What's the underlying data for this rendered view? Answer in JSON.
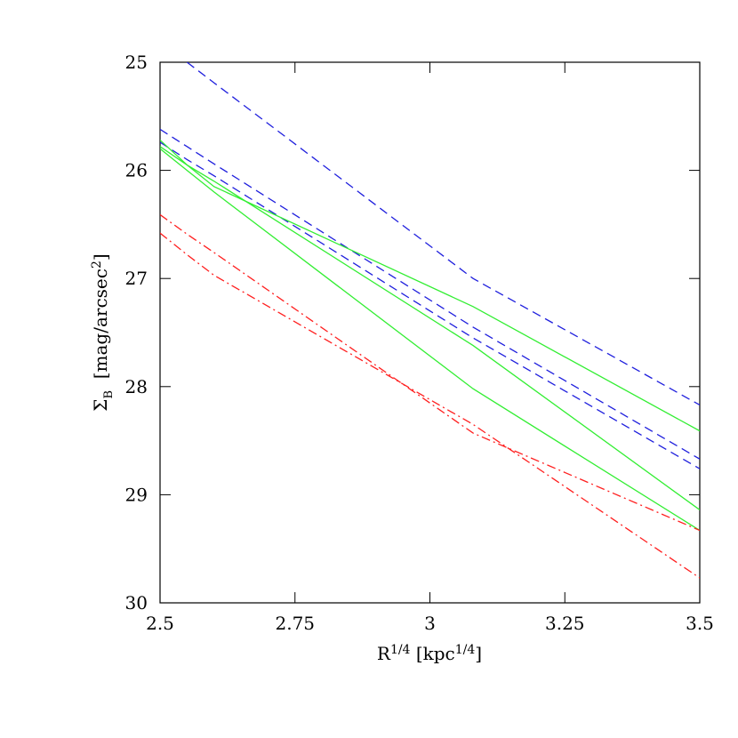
{
  "chart_data": {
    "type": "line",
    "x_label": [
      "R",
      "1/4",
      " [kpc",
      "1/4",
      "]"
    ],
    "y_label": [
      "Σ",
      "B",
      "  [mag/arcsec",
      "2",
      "]"
    ],
    "x": [
      2.5,
      2.55,
      2.6,
      3.08,
      3.5
    ],
    "series": [
      {
        "color": "#1f1fdd",
        "style": "dashed",
        "values": [
          null,
          25.0,
          25.19,
          27.0,
          28.17
        ]
      },
      {
        "color": "#1f1fdd",
        "style": "dashed",
        "values": [
          25.62,
          25.78,
          25.94,
          27.45,
          28.67
        ]
      },
      {
        "color": "#1f1fdd",
        "style": "dashed",
        "values": [
          25.74,
          25.9,
          26.05,
          27.55,
          28.76
        ]
      },
      {
        "color": "#33ee33",
        "style": "solid",
        "values": [
          25.72,
          25.95,
          26.15,
          27.26,
          28.41
        ]
      },
      {
        "color": "#33ee33",
        "style": "solid",
        "values": [
          25.78,
          25.95,
          26.1,
          27.62,
          29.14
        ]
      },
      {
        "color": "#33ee33",
        "style": "solid",
        "values": [
          25.8,
          26.0,
          26.2,
          28.02,
          29.33
        ]
      },
      {
        "color": "#ff1f1f",
        "style": "dashdot",
        "values": [
          26.41,
          26.59,
          26.76,
          28.43,
          29.33
        ]
      },
      {
        "color": "#ff1f1f",
        "style": "dashdot",
        "values": [
          26.58,
          26.78,
          26.97,
          28.35,
          29.77
        ]
      }
    ],
    "xlim": [
      2.5,
      3.5
    ],
    "xticks": [
      2.5,
      2.75,
      3,
      3.25,
      3.5
    ],
    "ylim": [
      30,
      25
    ],
    "yticks": [
      25,
      26,
      27,
      28,
      29,
      30
    ]
  }
}
